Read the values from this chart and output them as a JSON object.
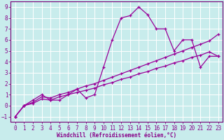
{
  "xlabel": "Windchill (Refroidissement éolien,°C)",
  "background_color": "#c8ecec",
  "grid_color": "#ffffff",
  "line_color": "#990099",
  "line1_x": [
    0,
    1,
    2,
    3,
    4,
    5,
    6,
    7,
    8,
    9,
    10,
    11,
    12,
    13,
    14,
    15,
    16,
    17,
    18,
    19,
    20,
    21,
    22,
    23
  ],
  "line1_y": [
    -1,
    0,
    0.5,
    1.0,
    0.5,
    0.5,
    1.0,
    1.5,
    0.7,
    1.0,
    3.5,
    6.0,
    8.0,
    8.2,
    9.0,
    8.3,
    7.0,
    7.0,
    5.0,
    6.0,
    6.0,
    3.5,
    4.5,
    4.5
  ],
  "line2_x": [
    0,
    1,
    2,
    3,
    4,
    5,
    6,
    7,
    8,
    9,
    10,
    11,
    12,
    13,
    14,
    15,
    16,
    17,
    18,
    19,
    20,
    21,
    22,
    23
  ],
  "line2_y": [
    -1,
    0.0,
    0.3,
    0.8,
    0.7,
    1.0,
    1.2,
    1.5,
    1.8,
    2.0,
    2.3,
    2.6,
    2.9,
    3.2,
    3.5,
    3.8,
    4.1,
    4.4,
    4.7,
    5.0,
    5.3,
    5.6,
    5.9,
    6.5
  ],
  "line3_x": [
    0,
    1,
    2,
    3,
    4,
    5,
    6,
    7,
    8,
    9,
    10,
    11,
    12,
    13,
    14,
    15,
    16,
    17,
    18,
    19,
    20,
    21,
    22,
    23
  ],
  "line3_y": [
    -1,
    0.0,
    0.2,
    0.6,
    0.5,
    0.8,
    1.0,
    1.2,
    1.4,
    1.6,
    1.9,
    2.1,
    2.4,
    2.6,
    2.9,
    3.1,
    3.4,
    3.6,
    3.9,
    4.1,
    4.4,
    4.6,
    4.9,
    4.5
  ],
  "xlim": [
    -0.5,
    23.5
  ],
  "ylim": [
    -1.5,
    9.5
  ],
  "xticks": [
    0,
    1,
    2,
    3,
    4,
    5,
    6,
    7,
    8,
    9,
    10,
    11,
    12,
    13,
    14,
    15,
    16,
    17,
    18,
    19,
    20,
    21,
    22,
    23
  ],
  "yticks": [
    -1,
    0,
    1,
    2,
    3,
    4,
    5,
    6,
    7,
    8,
    9
  ],
  "tick_fontsize": 5.5,
  "xlabel_fontsize": 5.5
}
